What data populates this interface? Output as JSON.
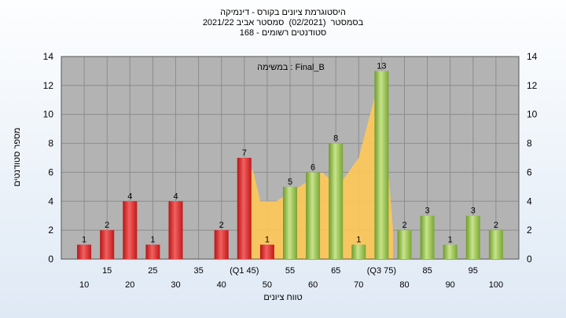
{
  "chart_data": {
    "type": "bar",
    "title_lines": [
      "היסטוגרמת ציונים בקורס - דינמיקה",
      "בסמסטר  (02/2021)  סמסטר אביב 2021/22",
      "סטודנטים רשומים - 168"
    ],
    "annotation": "במשימה : Final_B",
    "xlabel": "טווח ציונים",
    "ylabel": "מספר סטודנטים",
    "ylim": [
      0,
      14
    ],
    "yticks": [
      0,
      2,
      4,
      6,
      8,
      10,
      12,
      14
    ],
    "categories": [
      10,
      15,
      20,
      25,
      30,
      35,
      40,
      45,
      50,
      55,
      60,
      65,
      70,
      75,
      80,
      85,
      90,
      95,
      100
    ],
    "tick_labels": [
      "10",
      "15",
      "20",
      "25",
      "30",
      "35",
      "40",
      "(Q1 45)",
      "50",
      "55",
      "60",
      "65",
      "70",
      "(Q3 75)",
      "80",
      "85",
      "90",
      "95",
      "100"
    ],
    "bars": [
      {
        "x": 10,
        "value": 1,
        "color": "red"
      },
      {
        "x": 15,
        "value": 2,
        "color": "red"
      },
      {
        "x": 20,
        "value": 4,
        "color": "red"
      },
      {
        "x": 25,
        "value": 1,
        "color": "red"
      },
      {
        "x": 30,
        "value": 4,
        "color": "red"
      },
      {
        "x": 40,
        "value": 2,
        "color": "red"
      },
      {
        "x": 45,
        "value": 7,
        "color": "red"
      },
      {
        "x": 50,
        "value": 1,
        "color": "red"
      },
      {
        "x": 55,
        "value": 5,
        "color": "green"
      },
      {
        "x": 60,
        "value": 6,
        "color": "green"
      },
      {
        "x": 65,
        "value": 8,
        "color": "green"
      },
      {
        "x": 70,
        "value": 1,
        "color": "green"
      },
      {
        "x": 75,
        "value": 13,
        "color": "green"
      },
      {
        "x": 80,
        "value": 2,
        "color": "green"
      },
      {
        "x": 85,
        "value": 3,
        "color": "green"
      },
      {
        "x": 90,
        "value": 1,
        "color": "green"
      },
      {
        "x": 95,
        "value": 3,
        "color": "green"
      },
      {
        "x": 100,
        "value": 2,
        "color": "green"
      }
    ],
    "area": {
      "points": [
        [
          45,
          7
        ],
        [
          47,
          6
        ],
        [
          48.5,
          4
        ],
        [
          52,
          4
        ],
        [
          57,
          5
        ],
        [
          62,
          6
        ],
        [
          65.5,
          5
        ],
        [
          70,
          7
        ],
        [
          75,
          13
        ],
        [
          76,
          8
        ],
        [
          77.5,
          2
        ]
      ],
      "color": "#ffc857"
    },
    "colors": {
      "red": "#e02424",
      "green": "#8fc14a",
      "plot_bg": "#b3b3b3",
      "grid": "#8c8c8c"
    }
  }
}
